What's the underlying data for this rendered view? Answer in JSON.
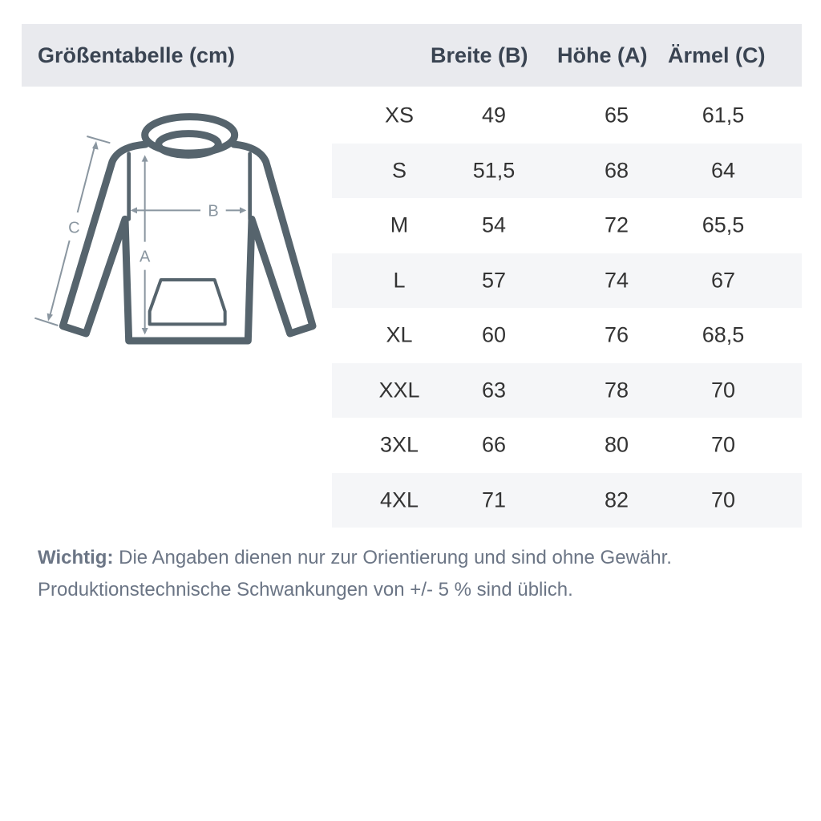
{
  "header": {
    "title": "Größentabelle (cm)",
    "col_b": "Breite (B)",
    "col_a": "Höhe (A)",
    "col_c": "Ärmel (C)"
  },
  "diagram": {
    "label_a": "A",
    "label_b": "B",
    "label_c": "C"
  },
  "rows": [
    [
      "XS",
      "49",
      "65",
      "61,5"
    ],
    [
      "S",
      "51,5",
      "68",
      "64"
    ],
    [
      "M",
      "54",
      "72",
      "65,5"
    ],
    [
      "L",
      "57",
      "74",
      "67"
    ],
    [
      "XL",
      "60",
      "76",
      "68,5"
    ],
    [
      "XXL",
      "63",
      "78",
      "70"
    ],
    [
      "3XL",
      "66",
      "80",
      "70"
    ],
    [
      "4XL",
      "71",
      "82",
      "70"
    ]
  ],
  "note": {
    "label": "Wichtig:",
    "line1": " Die Angaben dienen nur zur Orientierung und sind ohne Gewähr.",
    "line2": "Produktionstechnische Schwankungen von +/- 5 % sind üblich."
  },
  "colors": {
    "header_bg": "#e9eaee",
    "header_text": "#3a4452",
    "garment": "#56646d",
    "measure": "#8a96a0",
    "stripe": "#f5f6f8"
  }
}
